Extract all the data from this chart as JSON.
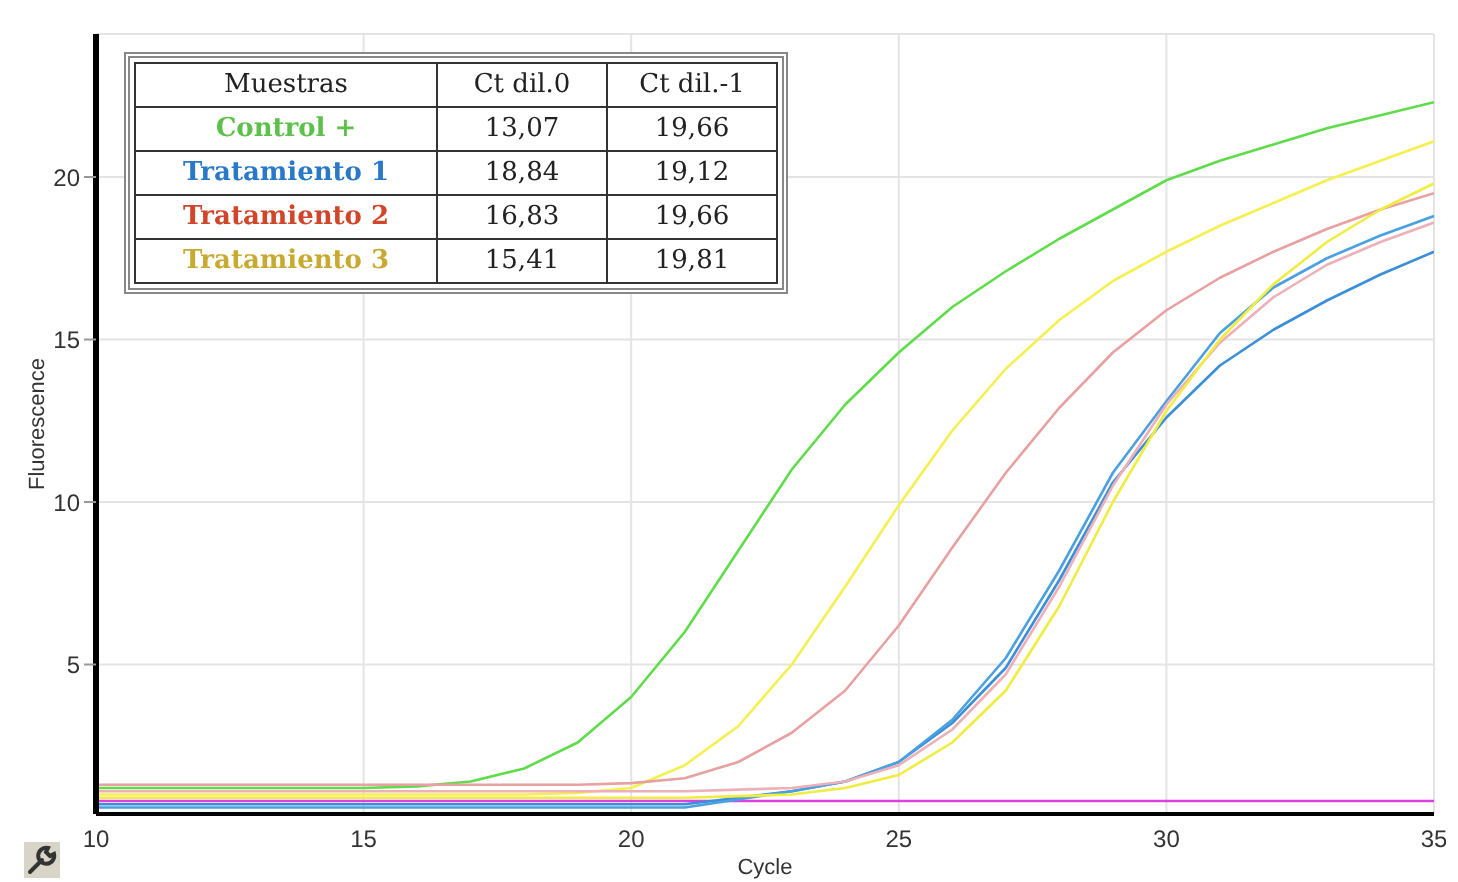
{
  "chart_data": {
    "type": "line",
    "xlabel": "Cycle",
    "ylabel": "Fluorescence",
    "x": [
      10,
      11,
      12,
      13,
      14,
      15,
      16,
      17,
      18,
      19,
      20,
      21,
      22,
      23,
      24,
      25,
      26,
      27,
      28,
      29,
      30,
      31,
      32,
      33,
      34,
      35
    ],
    "series": [
      {
        "color": "#e040e0",
        "values": [
          0.8,
          0.8,
          0.8,
          0.8,
          0.8,
          0.8,
          0.8,
          0.8,
          0.8,
          0.8,
          0.8,
          0.8,
          0.8,
          0.8,
          0.8,
          0.8,
          0.8,
          0.8,
          0.8,
          0.8,
          0.8,
          0.8,
          0.8,
          0.8,
          0.8,
          0.8
        ]
      },
      {
        "color": "#5fdc4a",
        "values": [
          1.2,
          1.2,
          1.2,
          1.2,
          1.2,
          1.2,
          1.25,
          1.4,
          1.8,
          2.6,
          4.0,
          6.0,
          8.5,
          11.0,
          13.0,
          14.6,
          16.0,
          17.1,
          18.1,
          19.0,
          19.9,
          20.5,
          21.0,
          21.5,
          21.9,
          22.3
        ]
      },
      {
        "color": "#f5f050",
        "values": [
          1.0,
          1.0,
          1.0,
          1.0,
          1.0,
          1.0,
          1.0,
          1.0,
          1.0,
          1.05,
          1.2,
          1.9,
          3.1,
          5.0,
          7.4,
          9.9,
          12.2,
          14.1,
          15.6,
          16.8,
          17.7,
          18.5,
          19.2,
          19.9,
          20.5,
          21.1
        ]
      },
      {
        "color": "#e8a0a0",
        "values": [
          1.3,
          1.3,
          1.3,
          1.3,
          1.3,
          1.3,
          1.3,
          1.3,
          1.3,
          1.3,
          1.35,
          1.5,
          2.0,
          2.9,
          4.2,
          6.2,
          8.6,
          10.9,
          12.9,
          14.6,
          15.9,
          16.9,
          17.7,
          18.4,
          19.0,
          19.5
        ]
      },
      {
        "color": "#3a8fd8",
        "values": [
          0.7,
          0.7,
          0.7,
          0.7,
          0.7,
          0.7,
          0.7,
          0.7,
          0.7,
          0.7,
          0.7,
          0.7,
          0.9,
          1.1,
          1.4,
          2.0,
          3.2,
          4.9,
          7.6,
          10.6,
          12.6,
          14.2,
          15.3,
          16.2,
          17.0,
          17.7
        ]
      },
      {
        "color": "#4aa0e0",
        "values": [
          0.6,
          0.6,
          0.6,
          0.6,
          0.6,
          0.6,
          0.6,
          0.6,
          0.6,
          0.6,
          0.6,
          0.6,
          0.85,
          1.1,
          1.4,
          2.0,
          3.3,
          5.2,
          7.9,
          10.9,
          13.1,
          15.2,
          16.6,
          17.5,
          18.2,
          18.8
        ]
      },
      {
        "color": "#eeb0b8",
        "values": [
          1.1,
          1.1,
          1.1,
          1.1,
          1.1,
          1.1,
          1.1,
          1.1,
          1.1,
          1.1,
          1.1,
          1.1,
          1.15,
          1.2,
          1.4,
          1.9,
          3.0,
          4.7,
          7.4,
          10.5,
          13.0,
          14.9,
          16.3,
          17.3,
          18.0,
          18.6
        ]
      },
      {
        "color": "#f0ec40",
        "values": [
          0.9,
          0.9,
          0.9,
          0.9,
          0.9,
          0.9,
          0.9,
          0.9,
          0.9,
          0.9,
          0.9,
          0.9,
          0.95,
          1.0,
          1.2,
          1.6,
          2.6,
          4.2,
          6.8,
          10.0,
          12.8,
          15.0,
          16.7,
          18.0,
          19.0,
          19.8
        ]
      }
    ],
    "xlim": [
      10,
      35
    ],
    "xticks": [
      10,
      15,
      20,
      25,
      30,
      35
    ],
    "ylim": [
      0.4,
      24.4
    ],
    "yticks": [
      5,
      10,
      15,
      20
    ],
    "grid": true,
    "marker": "none",
    "line_style": "solid",
    "annotations": [
      "Muestras",
      "Ct dil.0",
      "Ct dil.-1",
      "Control +",
      "13,07",
      "19,66",
      "Tratamiento 1",
      "18,84",
      "19,12",
      "Tratamiento 2",
      "16,83",
      "19,66",
      "Tratamiento 3",
      "15,41",
      "19,81"
    ]
  }
}
